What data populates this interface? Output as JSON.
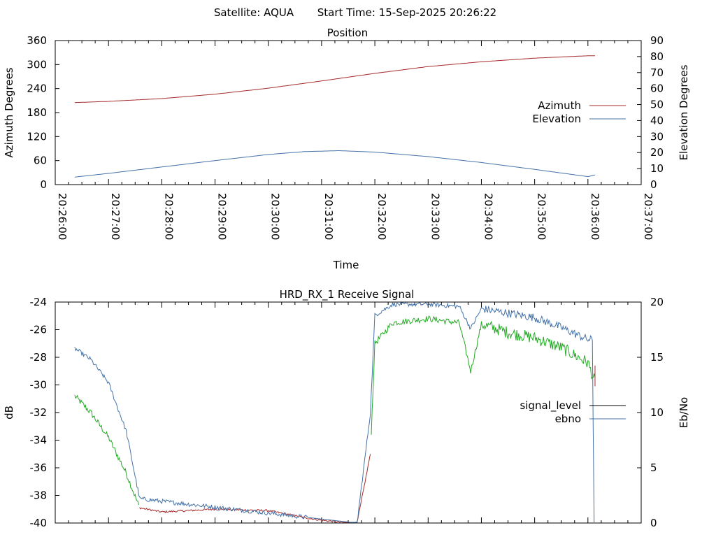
{
  "header": {
    "satellite_label": "Satellite: AQUA",
    "start_time_label": "Start Time: 15-Sep-2025 20:26:22"
  },
  "chart_data": [
    {
      "type": "line",
      "title": "Position",
      "xlabel": "Time",
      "ylabel": "Azimuth Degrees",
      "y2label": "Elevation Degrees",
      "xlim": [
        "20:26:00",
        "20:37:00"
      ],
      "xticks": [
        "20:26:00",
        "20:27:00",
        "20:28:00",
        "20:29:00",
        "20:30:00",
        "20:31:00",
        "20:32:00",
        "20:33:00",
        "20:34:00",
        "20:35:00",
        "20:36:00",
        "20:37:00"
      ],
      "ylim": [
        0,
        360
      ],
      "yticks": [
        "0",
        "60",
        "120",
        "180",
        "240",
        "300",
        "360"
      ],
      "y2lim": [
        0,
        90
      ],
      "y2ticks": [
        "0",
        "10",
        "20",
        "30",
        "40",
        "50",
        "60",
        "70",
        "80",
        "90"
      ],
      "legend": "right",
      "grid": false,
      "series": [
        {
          "name": "Azimuth",
          "axis": "left",
          "color": "#a52a2a",
          "x": [
            "20:26:22",
            "20:27:00",
            "20:28:00",
            "20:29:00",
            "20:30:00",
            "20:31:00",
            "20:32:00",
            "20:33:00",
            "20:34:00",
            "20:35:00",
            "20:36:00",
            "20:36:08"
          ],
          "y": [
            205,
            208,
            215,
            226,
            241,
            259,
            278,
            295,
            307,
            316,
            322,
            322
          ]
        },
        {
          "name": "Elevation",
          "axis": "right",
          "color": "#4472a8",
          "x": [
            "20:26:22",
            "20:27:00",
            "20:28:00",
            "20:29:00",
            "20:30:00",
            "20:30:40",
            "20:31:20",
            "20:32:00",
            "20:33:00",
            "20:34:00",
            "20:35:00",
            "20:36:00",
            "20:36:08"
          ],
          "y": [
            4.7,
            7.0,
            11.0,
            15.0,
            18.8,
            20.6,
            21.2,
            20.3,
            17.5,
            13.8,
            9.5,
            5.0,
            6.0
          ]
        }
      ]
    },
    {
      "type": "line",
      "title": "HRD_RX_1 Receive Signal",
      "ylabel": "dB",
      "y2label": "Eb/No",
      "xlim": [
        "20:26:00",
        "20:37:00"
      ],
      "ylim": [
        -40,
        -24
      ],
      "yticks": [
        "-40",
        "-38",
        "-36",
        "-34",
        "-32",
        "-30",
        "-28",
        "-26",
        "-24"
      ],
      "y2lim": [
        0,
        20
      ],
      "y2ticks": [
        "0",
        "5",
        "10",
        "15",
        "20"
      ],
      "legend": "right",
      "grid": false,
      "series": [
        {
          "name": "signal_level",
          "axis": "left",
          "legend_color": "#000000",
          "colors": {
            "strong": "#22aa22",
            "weak": "#a52a2a"
          },
          "x": [
            "20:26:22",
            "20:26:40",
            "20:27:00",
            "20:27:20",
            "20:27:35",
            "20:28:00",
            "20:29:00",
            "20:30:00",
            "20:30:40",
            "20:31:00",
            "20:31:30",
            "20:31:40",
            "20:31:55",
            "20:32:00",
            "20:32:20",
            "20:33:00",
            "20:33:35",
            "20:33:48",
            "20:34:00",
            "20:34:30",
            "20:35:00",
            "20:35:30",
            "20:36:00",
            "20:36:08"
          ],
          "y": [
            -30.8,
            -32.0,
            -33.8,
            -36.4,
            -38.9,
            -39.2,
            -39.0,
            -39.1,
            -39.6,
            -39.8,
            -40.0,
            -40.0,
            -35.0,
            -27.0,
            -25.5,
            -25.2,
            -25.5,
            -29.0,
            -25.6,
            -26.2,
            -26.6,
            -27.3,
            -28.4,
            -29.8
          ]
        },
        {
          "name": "ebno",
          "axis": "right",
          "color": "#4472a8",
          "x": [
            "20:26:22",
            "20:26:40",
            "20:27:00",
            "20:27:20",
            "20:27:35",
            "20:31:40",
            "20:31:55",
            "20:32:00",
            "20:32:20",
            "20:33:00",
            "20:33:35",
            "20:33:48",
            "20:34:00",
            "20:34:30",
            "20:35:00",
            "20:35:30",
            "20:36:00",
            "20:36:05",
            "20:36:07"
          ],
          "y": [
            15.8,
            14.8,
            12.7,
            8.3,
            2.2,
            0.0,
            10.0,
            18.8,
            19.8,
            19.8,
            19.6,
            17.6,
            19.4,
            19.0,
            18.6,
            17.7,
            16.6,
            16.6,
            0.0
          ]
        }
      ]
    }
  ]
}
